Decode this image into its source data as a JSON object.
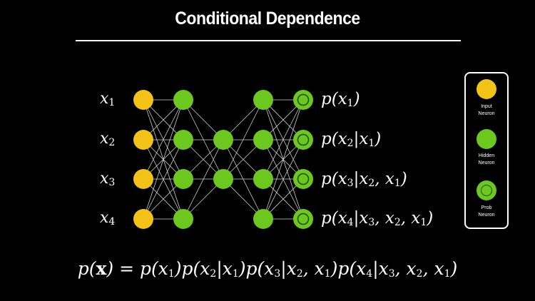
{
  "title": "Conditional Dependence",
  "inputs": [
    "x",
    "x",
    "x",
    "x"
  ],
  "input_subs": [
    "1",
    "2",
    "3",
    "4"
  ],
  "outputs": [
    {
      "pre": "p(x",
      "sub": "1",
      "post": ")"
    },
    {
      "pre": "p(x",
      "sub": "2",
      "post": "|x",
      "sub2": "1",
      "post2": ")"
    },
    {
      "pre": "p(x",
      "sub": "3",
      "post": "|x",
      "sub2": "2",
      "post2": ", x",
      "sub3": "1",
      "post3": ")"
    },
    {
      "pre": "p(x",
      "sub": "4",
      "post": "|x",
      "sub2": "3",
      "post2": ", x",
      "sub3": "2",
      "post3": ", x",
      "sub4": "1",
      "post4": ")"
    }
  ],
  "legend": {
    "input_l1": "Input",
    "input_l2": "Neuron",
    "hidden_l1": "Hidden",
    "hidden_l2": "Neuron",
    "prob_l1": "Prob",
    "prob_l2": "Neuron"
  },
  "formula": {
    "lhs": "p(",
    "bold_x": "x",
    "eq": ") = ",
    "t1": "p(x",
    "s1": "1",
    "t2": ")p(x",
    "s2": "2",
    "t3": "|x",
    "s3": "1",
    "t4": ")p(x",
    "s4": "3",
    "t5": "|x",
    "s5": "2",
    "t6": ", x",
    "s6": "1",
    "t7": ")p(x",
    "s7": "4",
    "t8": "|x",
    "s8": "3",
    "t9": ", x",
    "s9": "2",
    "t10": ", x",
    "s10": "1",
    "t11": ")"
  },
  "colors": {
    "input": "#F2C316",
    "hidden": "#6CC81F",
    "prob_ring": "#1E4A0A",
    "edge": "#CFCFCF",
    "background": "#000000"
  }
}
